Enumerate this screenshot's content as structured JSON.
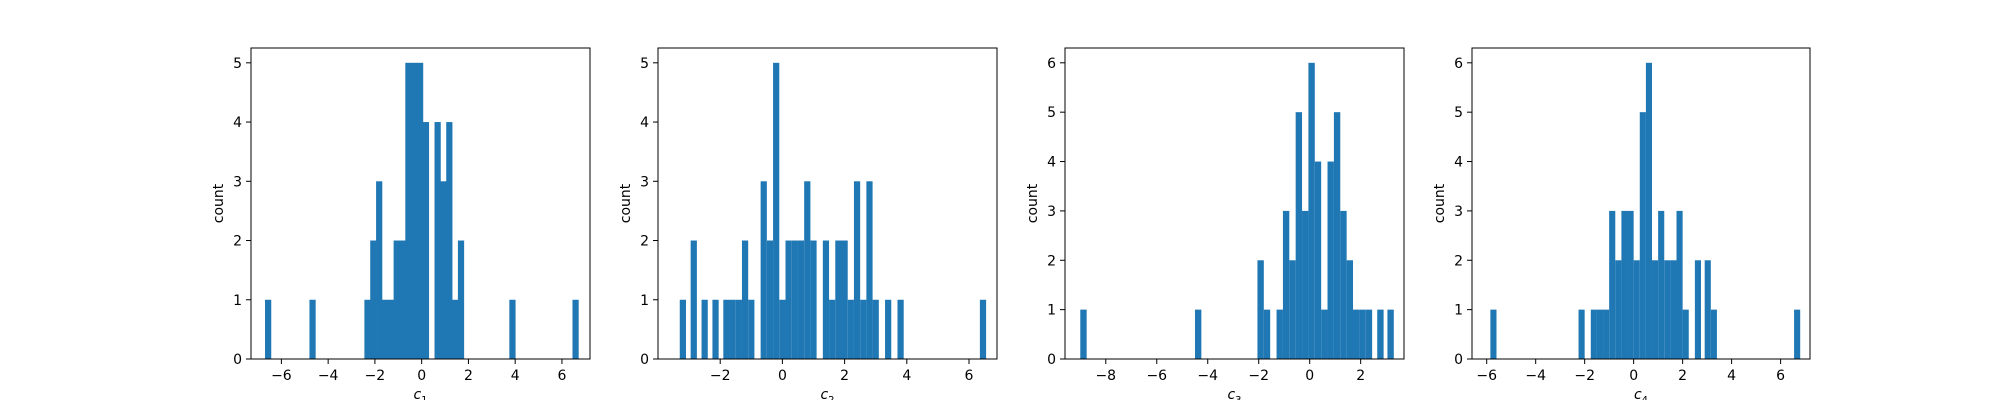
{
  "chart_data": [
    {
      "type": "bar",
      "xlabel": "c1",
      "xlabel_base": "c",
      "xlabel_sub": "1",
      "ylabel": "count",
      "xlim": [
        -7.3,
        7.2
      ],
      "ylim": [
        0,
        5.25
      ],
      "xticks": [
        -6,
        -4,
        -2,
        0,
        2,
        4,
        6
      ],
      "yticks": [
        0,
        1,
        2,
        3,
        4,
        5
      ],
      "bin_width": 0.266,
      "bins": [
        {
          "x": -6.7,
          "count": 1
        },
        {
          "x": -4.8,
          "count": 1
        },
        {
          "x": -2.45,
          "count": 1
        },
        {
          "x": -2.2,
          "count": 2
        },
        {
          "x": -1.95,
          "count": 3
        },
        {
          "x": -1.7,
          "count": 1
        },
        {
          "x": -1.45,
          "count": 1
        },
        {
          "x": -1.2,
          "count": 2
        },
        {
          "x": -0.95,
          "count": 2
        },
        {
          "x": -0.7,
          "count": 5
        },
        {
          "x": -0.45,
          "count": 5
        },
        {
          "x": -0.2,
          "count": 5
        },
        {
          "x": 0.05,
          "count": 4
        },
        {
          "x": 0.55,
          "count": 4
        },
        {
          "x": 0.8,
          "count": 3
        },
        {
          "x": 1.05,
          "count": 4
        },
        {
          "x": 1.3,
          "count": 1
        },
        {
          "x": 1.55,
          "count": 2
        },
        {
          "x": 3.75,
          "count": 1
        },
        {
          "x": 6.45,
          "count": 1
        }
      ]
    },
    {
      "type": "bar",
      "xlabel": "c2",
      "xlabel_base": "c",
      "xlabel_sub": "2",
      "ylabel": "count",
      "xlim": [
        -4.0,
        6.9
      ],
      "ylim": [
        0,
        5.25
      ],
      "xticks": [
        -2,
        0,
        2,
        4,
        6
      ],
      "yticks": [
        0,
        1,
        2,
        3,
        4,
        5
      ],
      "bin_width": 0.2,
      "bins": [
        {
          "x": -3.3,
          "count": 1
        },
        {
          "x": -2.95,
          "count": 2
        },
        {
          "x": -2.6,
          "count": 1
        },
        {
          "x": -2.25,
          "count": 1
        },
        {
          "x": -1.9,
          "count": 1
        },
        {
          "x": -1.7,
          "count": 1
        },
        {
          "x": -1.5,
          "count": 1
        },
        {
          "x": -1.3,
          "count": 2
        },
        {
          "x": -1.1,
          "count": 1
        },
        {
          "x": -0.7,
          "count": 3
        },
        {
          "x": -0.5,
          "count": 2
        },
        {
          "x": -0.3,
          "count": 5
        },
        {
          "x": -0.1,
          "count": 1
        },
        {
          "x": 0.1,
          "count": 2
        },
        {
          "x": 0.3,
          "count": 2
        },
        {
          "x": 0.5,
          "count": 2
        },
        {
          "x": 0.7,
          "count": 3
        },
        {
          "x": 0.9,
          "count": 2
        },
        {
          "x": 1.3,
          "count": 2
        },
        {
          "x": 1.5,
          "count": 1
        },
        {
          "x": 1.7,
          "count": 2
        },
        {
          "x": 1.9,
          "count": 2
        },
        {
          "x": 2.1,
          "count": 1
        },
        {
          "x": 2.3,
          "count": 3
        },
        {
          "x": 2.5,
          "count": 1
        },
        {
          "x": 2.7,
          "count": 3
        },
        {
          "x": 2.9,
          "count": 1
        },
        {
          "x": 3.3,
          "count": 1
        },
        {
          "x": 3.7,
          "count": 1
        },
        {
          "x": 6.35,
          "count": 1
        }
      ]
    },
    {
      "type": "bar",
      "xlabel": "c3",
      "xlabel_base": "c",
      "xlabel_sub": "3",
      "ylabel": "count",
      "xlim": [
        -9.6,
        3.7
      ],
      "ylim": [
        0,
        6.3
      ],
      "xticks": [
        -8,
        -6,
        -4,
        -2,
        0,
        2
      ],
      "yticks": [
        0,
        1,
        2,
        3,
        4,
        5,
        6
      ],
      "bin_width": 0.25,
      "bins": [
        {
          "x": -9.0,
          "count": 1
        },
        {
          "x": -4.5,
          "count": 1
        },
        {
          "x": -2.05,
          "count": 2
        },
        {
          "x": -1.8,
          "count": 1
        },
        {
          "x": -1.3,
          "count": 1
        },
        {
          "x": -1.05,
          "count": 3
        },
        {
          "x": -0.8,
          "count": 2
        },
        {
          "x": -0.55,
          "count": 5
        },
        {
          "x": -0.3,
          "count": 3
        },
        {
          "x": -0.05,
          "count": 6
        },
        {
          "x": 0.2,
          "count": 4
        },
        {
          "x": 0.45,
          "count": 1
        },
        {
          "x": 0.7,
          "count": 4
        },
        {
          "x": 0.95,
          "count": 5
        },
        {
          "x": 1.2,
          "count": 3
        },
        {
          "x": 1.45,
          "count": 2
        },
        {
          "x": 1.7,
          "count": 1
        },
        {
          "x": 1.95,
          "count": 1
        },
        {
          "x": 2.2,
          "count": 1
        },
        {
          "x": 2.65,
          "count": 1
        },
        {
          "x": 3.05,
          "count": 1
        }
      ]
    },
    {
      "type": "bar",
      "xlabel": "c4",
      "xlabel_base": "c",
      "xlabel_sub": "4",
      "ylabel": "count",
      "xlim": [
        -6.6,
        7.2
      ],
      "ylim": [
        0,
        6.3
      ],
      "xticks": [
        -6,
        -4,
        -2,
        0,
        2,
        4,
        6
      ],
      "yticks": [
        0,
        1,
        2,
        3,
        4,
        5,
        6
      ],
      "bin_width": 0.25,
      "bins": [
        {
          "x": -5.85,
          "count": 1
        },
        {
          "x": -2.25,
          "count": 1
        },
        {
          "x": -1.75,
          "count": 1
        },
        {
          "x": -1.5,
          "count": 1
        },
        {
          "x": -1.25,
          "count": 1
        },
        {
          "x": -1.0,
          "count": 3
        },
        {
          "x": -0.75,
          "count": 2
        },
        {
          "x": -0.5,
          "count": 3
        },
        {
          "x": -0.25,
          "count": 3
        },
        {
          "x": 0.0,
          "count": 2
        },
        {
          "x": 0.25,
          "count": 5
        },
        {
          "x": 0.5,
          "count": 6
        },
        {
          "x": 0.75,
          "count": 2
        },
        {
          "x": 1.0,
          "count": 3
        },
        {
          "x": 1.25,
          "count": 2
        },
        {
          "x": 1.5,
          "count": 2
        },
        {
          "x": 1.75,
          "count": 3
        },
        {
          "x": 2.0,
          "count": 1
        },
        {
          "x": 2.5,
          "count": 2
        },
        {
          "x": 2.9,
          "count": 2
        },
        {
          "x": 3.15,
          "count": 1
        },
        {
          "x": 6.55,
          "count": 1
        }
      ]
    }
  ],
  "style": {
    "bar_color": "#1f77b4"
  }
}
